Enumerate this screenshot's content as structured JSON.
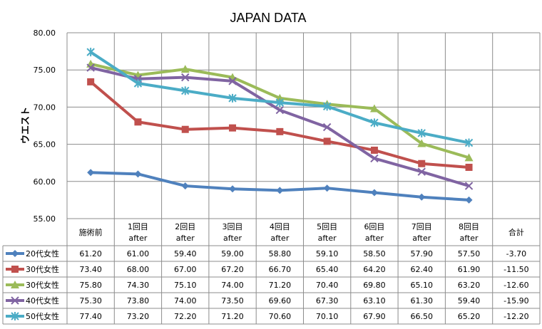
{
  "chart_data": {
    "type": "line",
    "title": "JAPAN DATA",
    "ylabel": "ウエスト",
    "xlabel": "",
    "ylim": [
      55,
      80
    ],
    "y_ticks": [
      "80.00",
      "75.00",
      "70.00",
      "65.00",
      "60.00",
      "55.00"
    ],
    "grid": true,
    "legend": "left table",
    "categories": [
      [
        "施術前",
        ""
      ],
      [
        "1回目",
        "after"
      ],
      [
        "2回目",
        "after"
      ],
      [
        "3回目",
        "after"
      ],
      [
        "4回目",
        "after"
      ],
      [
        "5回目",
        "after"
      ],
      [
        "6回目",
        "after"
      ],
      [
        "7回目",
        "after"
      ],
      [
        "8回目",
        "after"
      ]
    ],
    "total_label": "合計",
    "series": [
      {
        "name": "20代女性",
        "color": "#4f81bd",
        "marker": "diamond",
        "values": [
          61.2,
          61.0,
          59.4,
          59.0,
          58.8,
          59.1,
          58.5,
          57.9,
          57.5
        ],
        "labels": [
          "61.20",
          "61.00",
          "59.40",
          "59.00",
          "58.80",
          "59.10",
          "58.50",
          "57.90",
          "57.50"
        ],
        "total": "-3.70"
      },
      {
        "name": "30代女性",
        "color": "#c0504d",
        "marker": "square",
        "values": [
          73.4,
          68.0,
          67.0,
          67.2,
          66.7,
          65.4,
          64.2,
          62.4,
          61.9
        ],
        "labels": [
          "73.40",
          "68.00",
          "67.00",
          "67.20",
          "66.70",
          "65.40",
          "64.20",
          "62.40",
          "61.90"
        ],
        "total": "-11.50"
      },
      {
        "name": "30代女性",
        "color": "#9bbb59",
        "marker": "triangle",
        "values": [
          75.8,
          74.3,
          75.1,
          74.0,
          71.2,
          70.4,
          69.8,
          65.1,
          63.2
        ],
        "labels": [
          "75.80",
          "74.30",
          "75.10",
          "74.00",
          "71.20",
          "70.40",
          "69.80",
          "65.10",
          "63.20"
        ],
        "total": "-12.60"
      },
      {
        "name": "40代女性",
        "color": "#8064a2",
        "marker": "x",
        "values": [
          75.3,
          73.8,
          74.0,
          73.5,
          69.6,
          67.3,
          63.1,
          61.3,
          59.4
        ],
        "labels": [
          "75.30",
          "73.80",
          "74.00",
          "73.50",
          "69.60",
          "67.30",
          "63.10",
          "61.30",
          "59.40"
        ],
        "total": "-15.90"
      },
      {
        "name": "50代女性",
        "color": "#4bacc6",
        "marker": "star",
        "values": [
          77.4,
          73.2,
          72.2,
          71.2,
          70.6,
          70.1,
          67.9,
          66.5,
          65.2
        ],
        "labels": [
          "77.40",
          "73.20",
          "72.20",
          "71.20",
          "70.60",
          "70.10",
          "67.90",
          "66.50",
          "65.20"
        ],
        "total": "-12.20"
      }
    ]
  }
}
